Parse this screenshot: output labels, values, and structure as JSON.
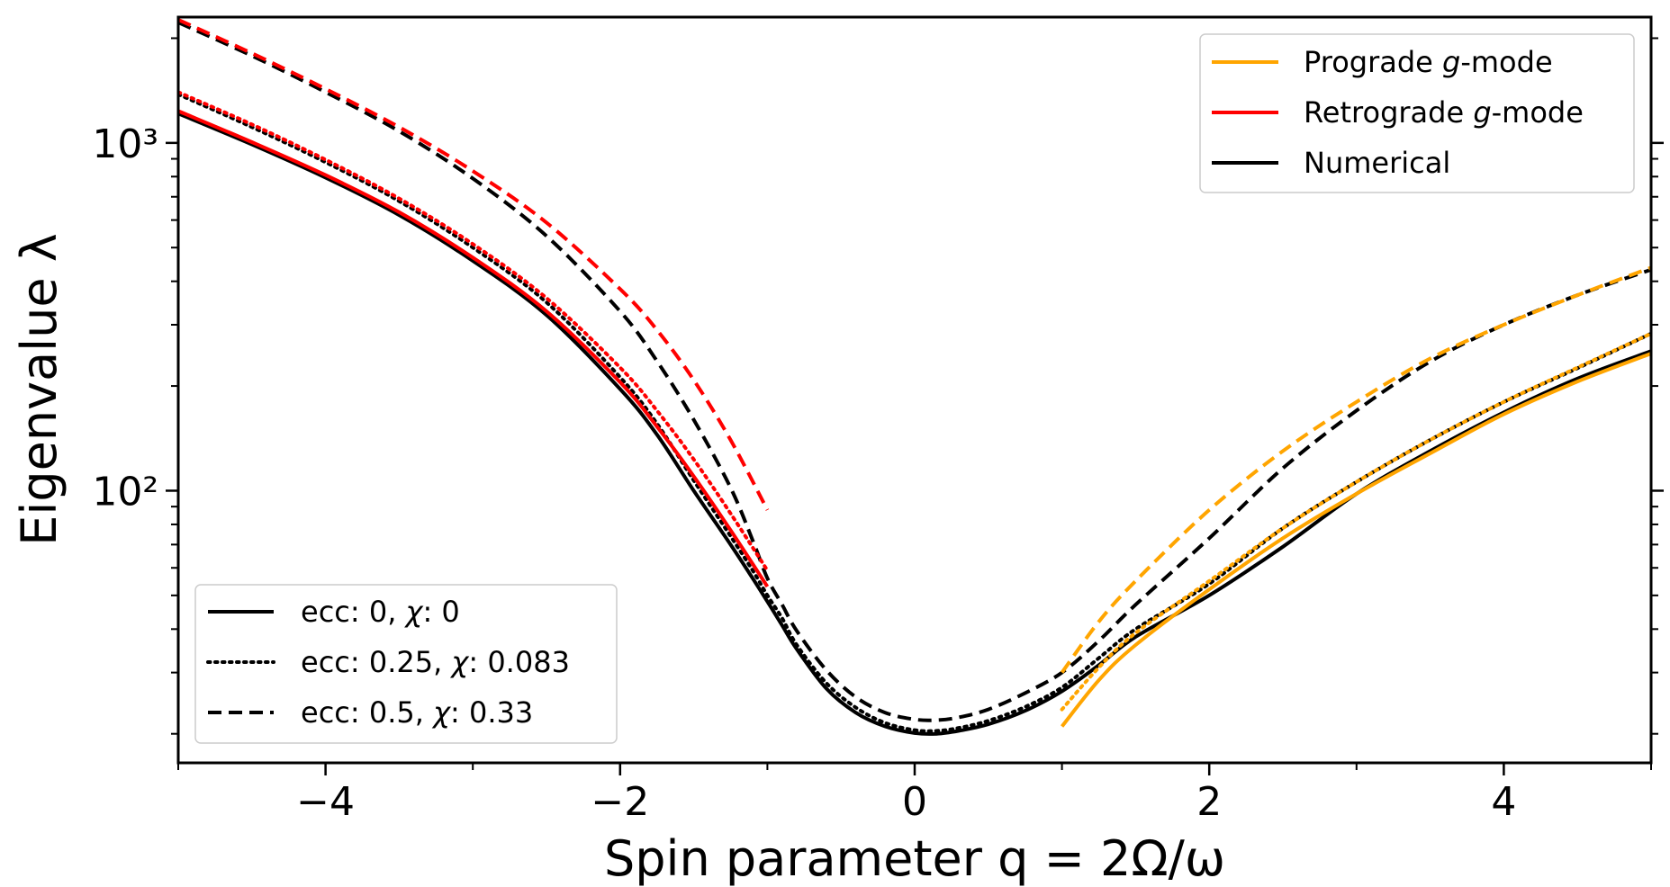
{
  "chart_data": {
    "type": "line",
    "title": "",
    "xlabel": "Spin parameter q = 2Ω/ω",
    "ylabel": "Eigenvalue λ",
    "yscale": "log",
    "xlim": [
      -5,
      5
    ],
    "ylim": [
      16.5,
      2300
    ],
    "x_ticks": [
      -4,
      -2,
      0,
      2,
      4
    ],
    "x_tick_labels": [
      "−4",
      "−2",
      "0",
      "2",
      "4"
    ],
    "y_ticks": [
      100,
      1000
    ],
    "y_tick_labels": [
      "10²",
      "10³"
    ],
    "colors": {
      "prograde": "#ffa500",
      "retrograde": "#ff0000",
      "numerical": "#000000"
    },
    "legend_color": {
      "title": "",
      "placement": "top-right",
      "entries": [
        {
          "label_prefix": "Prograde ",
          "label_italic": "g",
          "label_suffix": "-mode",
          "color": "#ffa500"
        },
        {
          "label_prefix": "Retrograde ",
          "label_italic": "g",
          "label_suffix": "-mode",
          "color": "#ff0000"
        },
        {
          "label_prefix": "Numerical",
          "label_italic": "",
          "label_suffix": "",
          "color": "#000000"
        }
      ]
    },
    "legend_style": {
      "placement": "bottom-left",
      "entries": [
        {
          "label_prefix": "ecc: 0, ",
          "label_italic": "χ",
          "label_suffix": ": 0",
          "dash": "solid"
        },
        {
          "label_prefix": "ecc: 0.25, ",
          "label_italic": "χ",
          "label_suffix": ": 0.083",
          "dash": "dotted"
        },
        {
          "label_prefix": "ecc: 0.5, ",
          "label_italic": "χ",
          "label_suffix": ": 0.33",
          "dash": "dashed"
        }
      ]
    },
    "series": [
      {
        "name": "Numerical ecc 0",
        "color": "#000000",
        "dash": "solid",
        "x": [
          -5,
          -4.5,
          -4,
          -3.5,
          -3,
          -2.5,
          -2,
          -1.75,
          -1.5,
          -1.25,
          -1.1,
          -1,
          -0.9,
          -0.8,
          -0.6,
          -0.4,
          -0.2,
          0,
          0.15,
          0.3,
          0.5,
          0.75,
          1,
          1.25,
          1.5,
          2,
          2.5,
          3,
          3.5,
          4,
          4.5,
          5
        ],
        "y": [
          1215,
          990,
          795,
          620,
          458,
          320,
          196,
          145,
          100,
          70,
          56,
          48,
          41,
          35,
          27,
          23,
          21,
          20.1,
          20,
          20.4,
          21.3,
          23.3,
          26.5,
          31.5,
          38,
          50,
          69,
          98,
          130,
          168,
          210,
          252
        ]
      },
      {
        "name": "Numerical ecc 0.25",
        "color": "#000000",
        "dash": "dotted",
        "x": [
          -5,
          -4.5,
          -4,
          -3.5,
          -3,
          -2.5,
          -2,
          -1.75,
          -1.5,
          -1.25,
          -1.1,
          -1,
          -0.9,
          -0.8,
          -0.6,
          -0.4,
          -0.2,
          0,
          0.15,
          0.3,
          0.5,
          0.75,
          1,
          1.25,
          1.5,
          2,
          2.5,
          3,
          3.5,
          4,
          4.5,
          5
        ],
        "y": [
          1380,
          1110,
          880,
          680,
          500,
          348,
          212,
          156,
          107,
          74,
          59,
          50,
          43,
          36,
          28,
          23.8,
          21.5,
          20.5,
          20.4,
          20.8,
          21.8,
          23.9,
          27.2,
          33,
          40,
          54,
          78,
          106,
          140,
          180,
          225,
          283
        ]
      },
      {
        "name": "Numerical ecc 0.5",
        "color": "#000000",
        "dash": "dashed",
        "x": [
          -5,
          -4.5,
          -4,
          -3.5,
          -3,
          -2.5,
          -2,
          -1.75,
          -1.5,
          -1.25,
          -1.1,
          -1,
          -0.9,
          -0.8,
          -0.6,
          -0.4,
          -0.2,
          0,
          0.15,
          0.3,
          0.5,
          0.75,
          1,
          1.25,
          1.5,
          2,
          2.5,
          3,
          3.5,
          4,
          4.5,
          5
        ],
        "y": [
          2220,
          1780,
          1400,
          1080,
          790,
          540,
          328,
          236,
          160,
          102,
          72,
          56,
          47,
          39.5,
          30.5,
          25.5,
          23,
          22,
          21.9,
          22.3,
          23.5,
          26.2,
          30,
          37,
          47,
          73,
          116,
          170,
          235,
          300,
          365,
          432
        ]
      },
      {
        "name": "Retrograde g-mode ecc 0",
        "color": "#ff0000",
        "dash": "solid",
        "x": [
          -5,
          -4.5,
          -4,
          -3.5,
          -3,
          -2.5,
          -2,
          -1.75,
          -1.5,
          -1.25,
          -1
        ],
        "y": [
          1235,
          1005,
          808,
          632,
          468,
          328,
          205,
          153,
          110,
          77,
          53
        ]
      },
      {
        "name": "Retrograde g-mode ecc 0.25",
        "color": "#ff0000",
        "dash": "dotted",
        "x": [
          -5,
          -4.5,
          -4,
          -3.5,
          -3,
          -2.5,
          -2,
          -1.75,
          -1.5,
          -1.25,
          -1
        ],
        "y": [
          1400,
          1130,
          895,
          692,
          512,
          358,
          226,
          170,
          123,
          86,
          59
        ]
      },
      {
        "name": "Retrograde g-mode ecc 0.5",
        "color": "#ff0000",
        "dash": "dashed",
        "x": [
          -5,
          -4.5,
          -4,
          -3.5,
          -3,
          -2.5,
          -2,
          -1.75,
          -1.5,
          -1.25,
          -1
        ],
        "y": [
          2260,
          1810,
          1430,
          1110,
          830,
          590,
          380,
          290,
          208,
          140,
          88
        ]
      },
      {
        "name": "Prograde g-mode ecc 0",
        "color": "#ffa500",
        "dash": "solid",
        "x": [
          1,
          1.25,
          1.5,
          2,
          2.5,
          3,
          3.5,
          4,
          4.5,
          5
        ],
        "y": [
          21,
          28.5,
          36,
          52,
          73,
          98,
          128,
          166,
          206,
          248
        ]
      },
      {
        "name": "Prograde g-mode ecc 0.25",
        "color": "#ffa500",
        "dash": "dotted",
        "x": [
          1,
          1.25,
          1.5,
          2,
          2.5,
          3,
          3.5,
          4,
          4.5,
          5
        ],
        "y": [
          23.5,
          31,
          39,
          55,
          78,
          106,
          140,
          180,
          226,
          283
        ]
      },
      {
        "name": "Prograde g-mode ecc 0.5",
        "color": "#ffa500",
        "dash": "dashed",
        "x": [
          1,
          1.25,
          1.5,
          2,
          2.5,
          3,
          3.5,
          4,
          4.5,
          5
        ],
        "y": [
          30,
          42,
          55,
          88,
          130,
          180,
          240,
          300,
          365,
          438
        ]
      }
    ]
  }
}
